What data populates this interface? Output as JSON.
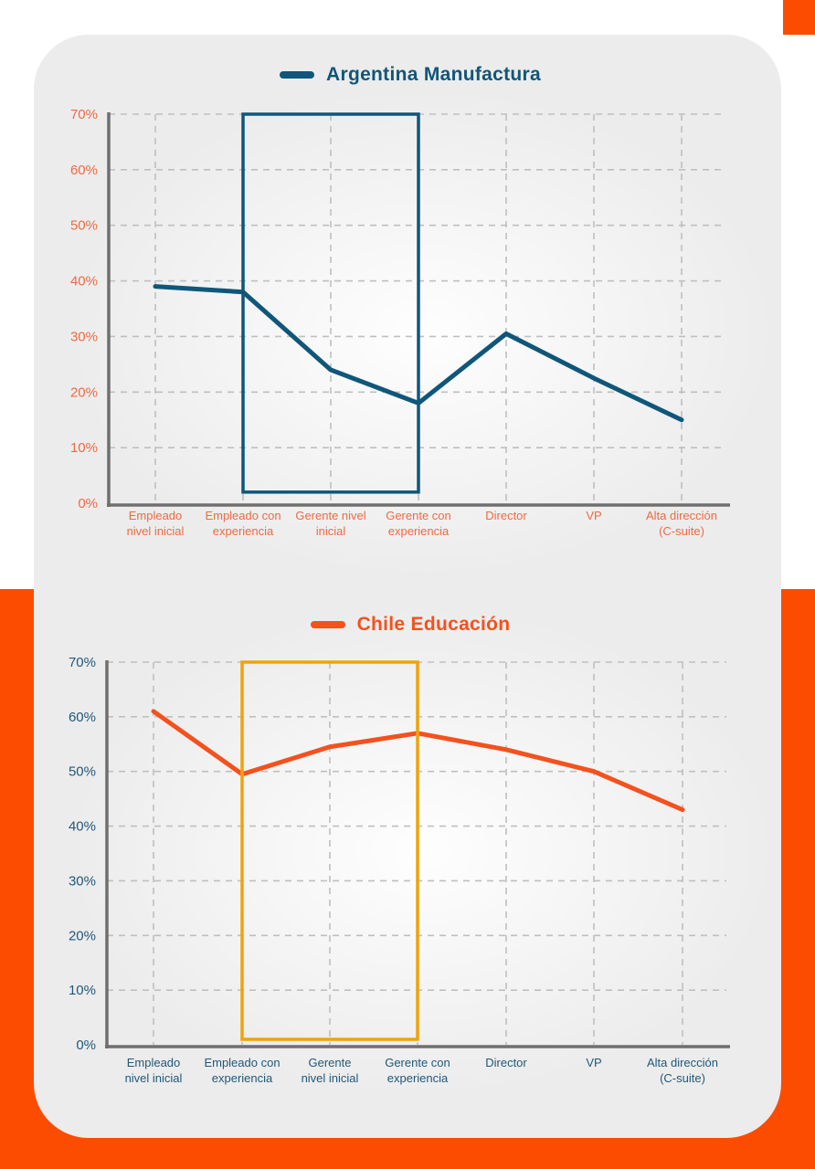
{
  "page": {
    "background_color": "#FFFFFF",
    "band_color": "#FC4C02",
    "card_color": "#ECECEC",
    "grid_color": "#BFBFBF",
    "axis_color": "#6F6F6F"
  },
  "chart_data": [
    {
      "type": "line",
      "title": "Argentina Manufactura",
      "categories": [
        "Empleado nivel inicial",
        "Empleado con experiencia",
        "Gerente nivel inicial",
        "Gerente con experiencia",
        "Director",
        "VP",
        "Alta dirección (C-suite)"
      ],
      "category_lines": [
        [
          "Empleado",
          "nivel inicial"
        ],
        [
          "Empleado con",
          "experiencia"
        ],
        [
          "Gerente nivel",
          "inicial"
        ],
        [
          "Gerente con",
          "experiencia"
        ],
        [
          "Director"
        ],
        [
          "VP"
        ],
        [
          "Alta dirección",
          "(C-suite)"
        ]
      ],
      "values": [
        39,
        38,
        24,
        18,
        30.5,
        22.5,
        15
      ],
      "ylim": [
        0,
        70
      ],
      "ytick_step": 10,
      "ytick_labels": [
        "0%",
        "10%",
        "20%",
        "30%",
        "40%",
        "50%",
        "60%",
        "70%"
      ],
      "grid": "dashed",
      "legend_position": "top-center",
      "line_color": "#0F567A",
      "tick_label_color": "#EE6A43",
      "highlight_box": {
        "from_category": "Empleado con experiencia",
        "to_category": "Gerente con experiencia",
        "from_index": 1,
        "to_index": 3,
        "y_from": 2,
        "y_to": 70,
        "border_color": "#0F567A"
      }
    },
    {
      "type": "line",
      "title": "Chile Educación",
      "categories": [
        "Empleado nivel inicial",
        "Empleado con experiencia",
        "Gerente nivel inicial",
        "Gerente con experiencia",
        "Director",
        "VP",
        "Alta dirección (C-suite)"
      ],
      "category_lines": [
        [
          "Empleado",
          "nivel inicial"
        ],
        [
          "Empleado con",
          "experiencia"
        ],
        [
          "Gerente",
          "nivel inicial"
        ],
        [
          "Gerente con",
          "experiencia"
        ],
        [
          "Director"
        ],
        [
          "VP"
        ],
        [
          "Alta dirección",
          "(C-suite)"
        ]
      ],
      "values": [
        61,
        49.5,
        54.5,
        57,
        54,
        50,
        43
      ],
      "ylim": [
        0,
        70
      ],
      "ytick_step": 10,
      "ytick_labels": [
        "0%",
        "10%",
        "20%",
        "30%",
        "40%",
        "50%",
        "60%",
        "70%"
      ],
      "grid": "dashed",
      "legend_position": "top-center",
      "line_color": "#F4511E",
      "tick_label_color": "#20587A",
      "highlight_box": {
        "from_category": "Empleado con experiencia",
        "to_category": "Gerente con experiencia",
        "from_index": 1,
        "to_index": 3,
        "y_from": 1,
        "y_to": 70,
        "border_color": "#F0A30C"
      }
    }
  ]
}
